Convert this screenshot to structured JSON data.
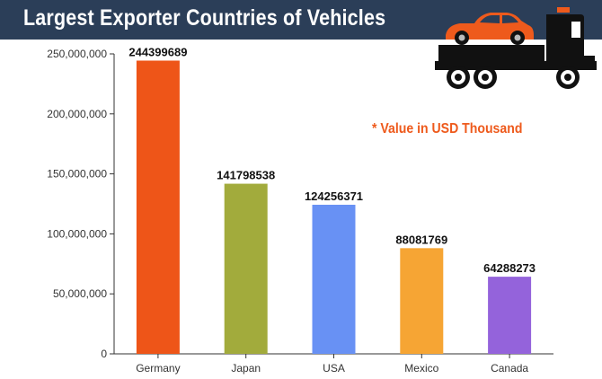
{
  "header": {
    "title": "Largest Exporter Countries of Vehicles",
    "background": "#2b3e58",
    "icon": "tow-truck-icon"
  },
  "note": "* Value in USD Thousand",
  "chart_data": {
    "type": "bar",
    "title": "Largest Exporter Countries of Vehicles",
    "categories": [
      "Germany",
      "Japan",
      "USA",
      "Mexico",
      "Canada"
    ],
    "values": [
      244399689,
      141798538,
      124256371,
      88081769,
      64288273
    ],
    "value_labels": [
      "244399689",
      "141798538",
      "124256371",
      "88081769",
      "64288273"
    ],
    "colors": [
      "#ee5518",
      "#a2ab3c",
      "#6891f4",
      "#f6a534",
      "#9463db"
    ],
    "ylim": [
      0,
      250000000
    ],
    "yticks": [
      0,
      50000000,
      100000000,
      150000000,
      200000000,
      250000000
    ],
    "ytick_labels": [
      "0",
      "50,000,000",
      "100,000,000",
      "150,000,000",
      "200,000,000",
      "250,000,000"
    ],
    "xlabel": "",
    "ylabel": "",
    "grid": false,
    "legend": "none"
  }
}
